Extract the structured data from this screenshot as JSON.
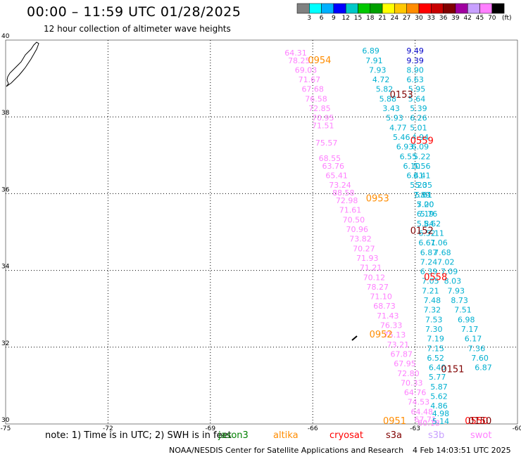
{
  "title": "00:00 – 11:59 UTC 01/28/2025",
  "subtitle": "12 hour collection of altimeter wave heights",
  "colorbar": {
    "colors": [
      "#808080",
      "#00ffff",
      "#00b0ff",
      "#0000ff",
      "#00c8c8",
      "#00c800",
      "#00a000",
      "#ffff00",
      "#ffc800",
      "#ff8c00",
      "#ff0000",
      "#c80000",
      "#800000",
      "#a000a0",
      "#c8a0ff",
      "#ff80ff",
      "#000000"
    ],
    "labels": [
      "3",
      "6",
      "9",
      "12",
      "15",
      "18",
      "21",
      "24",
      "27",
      "30",
      "33",
      "36",
      "39",
      "42",
      "45",
      "70"
    ],
    "unit": "(ft)"
  },
  "note": "note: 1) Time is in UTC; 2) SWH is in feet",
  "satellites": [
    {
      "name": "jason3",
      "color": "#008000"
    },
    {
      "name": "altika",
      "color": "#ff8c00"
    },
    {
      "name": "cryosat",
      "color": "#ff0000"
    },
    {
      "name": "s3a",
      "color": "#800000"
    },
    {
      "name": "s3b",
      "color": "#c8a0ff"
    },
    {
      "name": "swot",
      "color": "#ff80ff"
    }
  ],
  "footer": {
    "left": "NOAA/NESDIS Center for Satellite Applications and Research",
    "right": "4 Feb 14:03:51 UTC 2025"
  },
  "chart_data": {
    "type": "scatter",
    "xlim": [
      -75,
      -60
    ],
    "ylim": [
      30,
      40
    ],
    "x_ticks": [
      "-75",
      "-72",
      "-69",
      "-66",
      "-63",
      "-60"
    ],
    "y_ticks": [
      "30",
      "32",
      "34",
      "36",
      "38",
      "40"
    ],
    "grid": true,
    "time_labels": [
      {
        "text": "0954",
        "color": "#ff8c00",
        "x": -65.8,
        "y": 39.4
      },
      {
        "text": "0153",
        "color": "#800000",
        "x": -63.4,
        "y": 38.5
      },
      {
        "text": "0559",
        "color": "#ff0000",
        "x": -62.8,
        "y": 37.3
      },
      {
        "text": "0953",
        "color": "#ff8c00",
        "x": -64.1,
        "y": 35.8
      },
      {
        "text": "0152",
        "color": "#800000",
        "x": -62.8,
        "y": 34.95
      },
      {
        "text": "0558",
        "color": "#ff0000",
        "x": -62.4,
        "y": 33.75
      },
      {
        "text": "0952",
        "color": "#ff8c00",
        "x": -64.0,
        "y": 32.25
      },
      {
        "text": "0151",
        "color": "#800000",
        "x": -61.9,
        "y": 31.35
      },
      {
        "text": "0951",
        "color": "#ff8c00",
        "x": -63.6,
        "y": 30.0
      },
      {
        "text": "0550",
        "color": "#ff0000",
        "x": -61.2,
        "y": 30.0
      },
      {
        "text": "0150",
        "color": "#800000",
        "x": -61.1,
        "y": 30.0
      }
    ],
    "series": [
      {
        "name": "swot",
        "color": "#ff80ff",
        "points": [
          {
            "x": -66.5,
            "y": 39.6,
            "v": "64.31"
          },
          {
            "x": -66.4,
            "y": 39.4,
            "v": "78.25"
          },
          {
            "x": -66.2,
            "y": 39.15,
            "v": "69.03"
          },
          {
            "x": -66.1,
            "y": 38.9,
            "v": "71.67"
          },
          {
            "x": -66.0,
            "y": 38.65,
            "v": "67.68"
          },
          {
            "x": -65.9,
            "y": 38.4,
            "v": "76.58"
          },
          {
            "x": -65.8,
            "y": 38.15,
            "v": "72.85"
          },
          {
            "x": -65.7,
            "y": 37.9,
            "v": "70.95"
          },
          {
            "x": -65.7,
            "y": 37.7,
            "v": "71.51"
          },
          {
            "x": -65.6,
            "y": 37.25,
            "v": "75.57"
          },
          {
            "x": -65.5,
            "y": 36.85,
            "v": "68.55"
          },
          {
            "x": -65.4,
            "y": 36.65,
            "v": "63.76"
          },
          {
            "x": -65.3,
            "y": 36.4,
            "v": "65.41"
          },
          {
            "x": -65.2,
            "y": 36.15,
            "v": "73.24"
          },
          {
            "x": -65.1,
            "y": 35.95,
            "v": "88.58"
          },
          {
            "x": -65.0,
            "y": 35.75,
            "v": "72.98"
          },
          {
            "x": -64.9,
            "y": 35.5,
            "v": "71.61"
          },
          {
            "x": -64.8,
            "y": 35.25,
            "v": "70.50"
          },
          {
            "x": -64.7,
            "y": 35.0,
            "v": "70.96"
          },
          {
            "x": -64.6,
            "y": 34.75,
            "v": "73.82"
          },
          {
            "x": -64.5,
            "y": 34.5,
            "v": "70.27"
          },
          {
            "x": -64.4,
            "y": 34.25,
            "v": "71.93"
          },
          {
            "x": -64.3,
            "y": 34.0,
            "v": "71.21"
          },
          {
            "x": -64.2,
            "y": 33.75,
            "v": "70.12"
          },
          {
            "x": -64.1,
            "y": 33.5,
            "v": "78.27"
          },
          {
            "x": -64.0,
            "y": 33.25,
            "v": "71.10"
          },
          {
            "x": -63.9,
            "y": 33.0,
            "v": "68.73"
          },
          {
            "x": -63.8,
            "y": 32.75,
            "v": "71.43"
          },
          {
            "x": -63.7,
            "y": 32.5,
            "v": "76.33"
          },
          {
            "x": -63.6,
            "y": 32.25,
            "v": "75.13"
          },
          {
            "x": -63.5,
            "y": 32.0,
            "v": "73.21"
          },
          {
            "x": -63.4,
            "y": 31.75,
            "v": "67.87"
          },
          {
            "x": -63.3,
            "y": 31.5,
            "v": "67.95"
          },
          {
            "x": -63.2,
            "y": 31.25,
            "v": "72.80"
          },
          {
            "x": -63.1,
            "y": 31.0,
            "v": "70.33"
          },
          {
            "x": -63.0,
            "y": 30.75,
            "v": "64.76"
          },
          {
            "x": -62.9,
            "y": 30.5,
            "v": "74.53"
          },
          {
            "x": -62.8,
            "y": 30.25,
            "v": "64.48"
          },
          {
            "x": -62.7,
            "y": 30.05,
            "v": "67.71"
          },
          {
            "x": -62.6,
            "y": 29.95,
            "v": "60.18"
          }
        ]
      },
      {
        "name": "swh-track-1",
        "color": "#00b0d0",
        "points": [
          {
            "x": -64.3,
            "y": 39.65,
            "v": "6.89"
          },
          {
            "x": -64.2,
            "y": 39.4,
            "v": "7.91"
          },
          {
            "x": -64.1,
            "y": 39.15,
            "v": "7.93"
          },
          {
            "x": -64.0,
            "y": 38.9,
            "v": "4.72"
          },
          {
            "x": -63.9,
            "y": 38.65,
            "v": "5.82"
          },
          {
            "x": -63.8,
            "y": 38.4,
            "v": "5.88"
          },
          {
            "x": -63.7,
            "y": 38.15,
            "v": "3.43"
          },
          {
            "x": -63.6,
            "y": 37.9,
            "v": "5.93"
          },
          {
            "x": -63.5,
            "y": 37.65,
            "v": "4.77"
          },
          {
            "x": -63.4,
            "y": 37.4,
            "v": "5.46"
          },
          {
            "x": -63.3,
            "y": 37.15,
            "v": "6.93"
          },
          {
            "x": -63.2,
            "y": 36.9,
            "v": "6.55"
          },
          {
            "x": -63.1,
            "y": 36.65,
            "v": "6.10"
          },
          {
            "x": -63.0,
            "y": 36.4,
            "v": "6.41"
          },
          {
            "x": -62.9,
            "y": 36.15,
            "v": "5.20"
          },
          {
            "x": -62.8,
            "y": 35.9,
            "v": "7.89"
          },
          {
            "x": -62.7,
            "y": 35.65,
            "v": "7.00"
          },
          {
            "x": -62.6,
            "y": 35.4,
            "v": "5.76"
          },
          {
            "x": -62.5,
            "y": 35.15,
            "v": "5.62"
          },
          {
            "x": -62.4,
            "y": 34.9,
            "v": "7.11"
          },
          {
            "x": -62.3,
            "y": 34.65,
            "v": "7.06"
          },
          {
            "x": -62.2,
            "y": 34.4,
            "v": "7.68"
          },
          {
            "x": -62.1,
            "y": 34.15,
            "v": "7.02"
          },
          {
            "x": -62.0,
            "y": 33.9,
            "v": "7.09"
          },
          {
            "x": -61.9,
            "y": 33.65,
            "v": "8.03"
          },
          {
            "x": -61.8,
            "y": 33.4,
            "v": "7.93"
          },
          {
            "x": -61.7,
            "y": 33.15,
            "v": "8.73"
          },
          {
            "x": -61.6,
            "y": 32.9,
            "v": "7.51"
          },
          {
            "x": -61.5,
            "y": 32.65,
            "v": "6.98"
          },
          {
            "x": -61.4,
            "y": 32.4,
            "v": "7.17"
          },
          {
            "x": -61.3,
            "y": 32.15,
            "v": "6.17"
          },
          {
            "x": -61.2,
            "y": 31.9,
            "v": "7.36"
          },
          {
            "x": -61.1,
            "y": 31.65,
            "v": "7.60"
          },
          {
            "x": -61.0,
            "y": 31.4,
            "v": "6.87"
          }
        ]
      },
      {
        "name": "swh-track-2",
        "color": "#0000c8",
        "points": [
          {
            "x": -63.0,
            "y": 39.65,
            "v": "9.49"
          },
          {
            "x": -63.0,
            "y": 39.4,
            "v": "9.39"
          }
        ]
      },
      {
        "name": "swh-track-3",
        "color": "#00b0d0",
        "points": [
          {
            "x": -63.0,
            "y": 39.15,
            "v": "8.90"
          },
          {
            "x": -63.0,
            "y": 38.9,
            "v": "6.63"
          },
          {
            "x": -62.95,
            "y": 38.65,
            "v": "5.95"
          },
          {
            "x": -62.95,
            "y": 38.4,
            "v": "5.64"
          },
          {
            "x": -62.9,
            "y": 38.15,
            "v": "5.39"
          },
          {
            "x": -62.9,
            "y": 37.9,
            "v": "6.26"
          },
          {
            "x": -62.9,
            "y": 37.65,
            "v": "5.01"
          },
          {
            "x": -62.85,
            "y": 37.4,
            "v": "4.94"
          },
          {
            "x": -62.85,
            "y": 37.15,
            "v": "6.09"
          },
          {
            "x": -62.8,
            "y": 36.9,
            "v": "5.22"
          },
          {
            "x": -62.8,
            "y": 36.65,
            "v": "5.56"
          },
          {
            "x": -62.8,
            "y": 36.4,
            "v": "6.41"
          },
          {
            "x": -62.75,
            "y": 36.15,
            "v": "5.35"
          },
          {
            "x": -62.75,
            "y": 35.9,
            "v": "5.61"
          },
          {
            "x": -62.7,
            "y": 35.65,
            "v": "5.20"
          },
          {
            "x": -62.7,
            "y": 35.4,
            "v": "6.19"
          },
          {
            "x": -62.7,
            "y": 35.15,
            "v": "5.84"
          },
          {
            "x": -62.65,
            "y": 34.9,
            "v": "6.52"
          },
          {
            "x": -62.65,
            "y": 34.65,
            "v": "6.61"
          },
          {
            "x": -62.6,
            "y": 34.4,
            "v": "6.87"
          },
          {
            "x": -62.6,
            "y": 34.15,
            "v": "7.24"
          },
          {
            "x": -62.6,
            "y": 33.9,
            "v": "6.39"
          },
          {
            "x": -62.55,
            "y": 33.65,
            "v": "7.05"
          },
          {
            "x": -62.55,
            "y": 33.4,
            "v": "7.21"
          },
          {
            "x": -62.5,
            "y": 33.15,
            "v": "7.48"
          },
          {
            "x": -62.5,
            "y": 32.9,
            "v": "7.32"
          },
          {
            "x": -62.45,
            "y": 32.65,
            "v": "7.53"
          },
          {
            "x": -62.45,
            "y": 32.4,
            "v": "7.30"
          },
          {
            "x": -62.4,
            "y": 32.15,
            "v": "7.19"
          },
          {
            "x": -62.4,
            "y": 31.9,
            "v": "7.15"
          },
          {
            "x": -62.4,
            "y": 31.65,
            "v": "6.52"
          },
          {
            "x": -62.35,
            "y": 31.4,
            "v": "6.40"
          },
          {
            "x": -62.35,
            "y": 31.15,
            "v": "5.77"
          },
          {
            "x": -62.3,
            "y": 30.9,
            "v": "5.87"
          },
          {
            "x": -62.3,
            "y": 30.65,
            "v": "5.62"
          },
          {
            "x": -62.3,
            "y": 30.4,
            "v": "4.86"
          },
          {
            "x": -62.25,
            "y": 30.2,
            "v": "4.98"
          },
          {
            "x": -62.25,
            "y": 30.0,
            "v": "5.14"
          }
        ]
      }
    ]
  }
}
